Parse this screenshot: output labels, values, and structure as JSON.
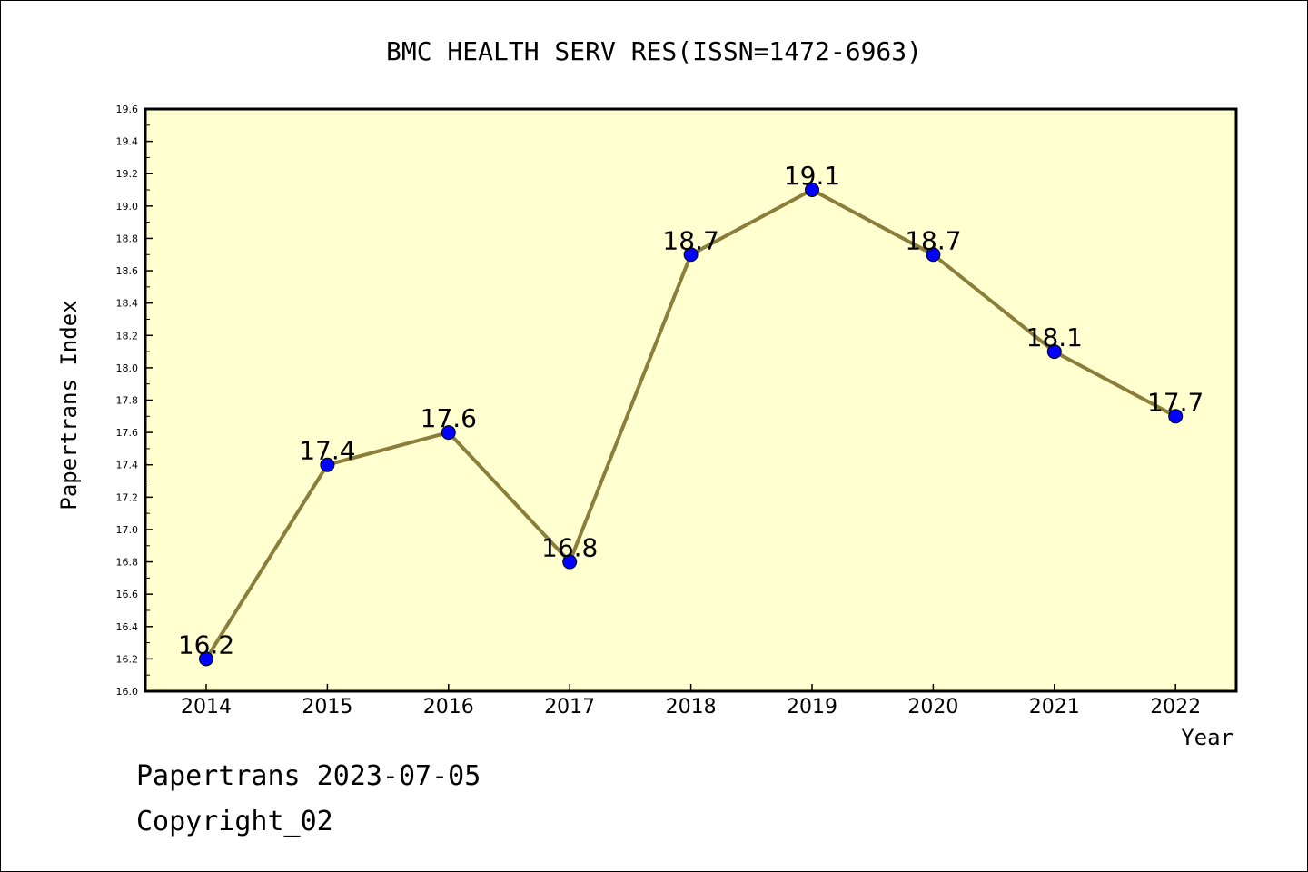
{
  "chart_data": {
    "type": "line",
    "title": "BMC HEALTH SERV RES(ISSN=1472-6963)",
    "xlabel": "Year",
    "ylabel": "Papertrans Index",
    "categories": [
      "2014",
      "2015",
      "2016",
      "2017",
      "2018",
      "2019",
      "2020",
      "2021",
      "2022"
    ],
    "series": [
      {
        "values": [
          16.2,
          17.4,
          17.6,
          16.8,
          18.7,
          19.1,
          18.7,
          18.1,
          17.7
        ]
      }
    ],
    "data_labels": [
      "16.2",
      "17.4",
      "17.6",
      "16.8",
      "18.7",
      "19.1",
      "18.7",
      "18.1",
      "17.7"
    ],
    "ylim": [
      16.0,
      19.6
    ],
    "yticks": [
      "16.0",
      "16.2",
      "16.4",
      "16.6",
      "16.8",
      "17.0",
      "17.2",
      "17.4",
      "17.6",
      "17.8",
      "18.0",
      "18.2",
      "18.4",
      "18.6",
      "18.8",
      "19.0",
      "19.2",
      "19.4",
      "19.6"
    ],
    "grid": false,
    "colors": {
      "plot_background": "#ffffd0",
      "line": "#8b7d3a",
      "marker": "#0000ff"
    }
  },
  "footer": {
    "line1": "Papertrans 2023-07-05",
    "line2": "Copyright_02"
  }
}
